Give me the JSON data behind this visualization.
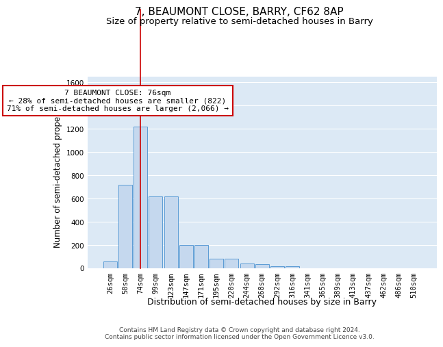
{
  "title1": "7, BEAUMONT CLOSE, BARRY, CF62 8AP",
  "title2": "Size of property relative to semi-detached houses in Barry",
  "xlabel": "Distribution of semi-detached houses by size in Barry",
  "ylabel": "Number of semi-detached properties",
  "bar_color": "#c5d8ee",
  "bar_edge_color": "#5b9bd5",
  "bg_color": "#dce9f5",
  "grid_color": "#ffffff",
  "categories": [
    "26sqm",
    "50sqm",
    "74sqm",
    "99sqm",
    "123sqm",
    "147sqm",
    "171sqm",
    "195sqm",
    "220sqm",
    "244sqm",
    "268sqm",
    "292sqm",
    "316sqm",
    "341sqm",
    "365sqm",
    "389sqm",
    "413sqm",
    "437sqm",
    "462sqm",
    "486sqm",
    "510sqm"
  ],
  "values": [
    60,
    720,
    1220,
    620,
    620,
    200,
    200,
    80,
    80,
    40,
    35,
    20,
    20,
    0,
    0,
    0,
    0,
    0,
    0,
    0,
    0
  ],
  "red_line_index": 2,
  "red_line_color": "#cc0000",
  "ylim": [
    0,
    1650
  ],
  "yticks": [
    0,
    200,
    400,
    600,
    800,
    1000,
    1200,
    1400,
    1600
  ],
  "annotation_line1": "7 BEAUMONT CLOSE: 76sqm",
  "annotation_line2": "← 28% of semi-detached houses are smaller (822)",
  "annotation_line3": "71% of semi-detached houses are larger (2,066) →",
  "annotation_box_color": "#ffffff",
  "annotation_box_edge": "#cc0000",
  "footer_text": "Contains HM Land Registry data © Crown copyright and database right 2024.\nContains public sector information licensed under the Open Government Licence v3.0.",
  "title1_fontsize": 11,
  "title2_fontsize": 9.5,
  "ylabel_fontsize": 8.5,
  "xlabel_fontsize": 9,
  "tick_fontsize": 7.5,
  "annotation_fontsize": 8,
  "footer_fontsize": 6.5
}
